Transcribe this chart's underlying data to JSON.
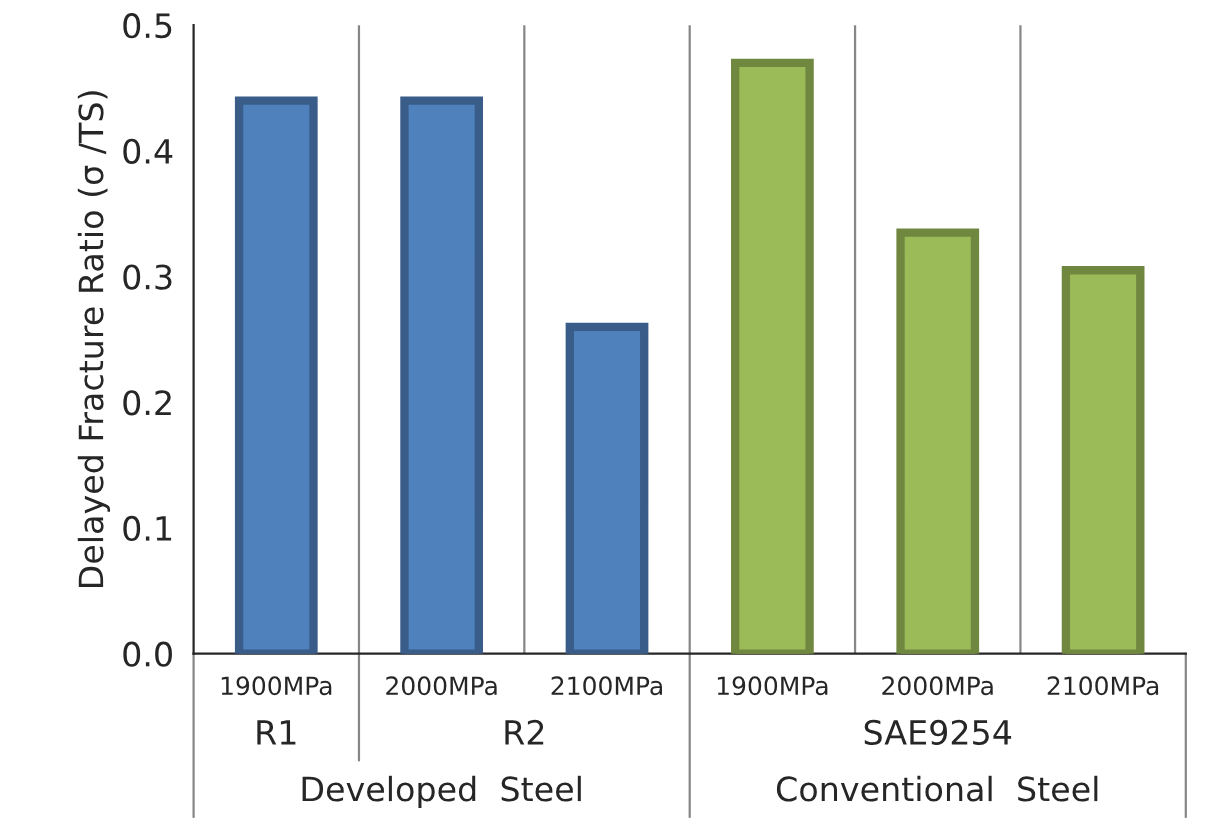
{
  "chart_data": {
    "type": "bar",
    "ylabel": "Delayed Fracture Ratio (σ /TS)",
    "categories": [
      "1900MPa",
      "2000MPa",
      "2100MPa",
      "1900MPa",
      "2000MPa",
      "2100MPa"
    ],
    "values": [
      0.44,
      0.44,
      0.26,
      0.47,
      0.335,
      0.305
    ],
    "colors": [
      "#4f81bd",
      "#4f81bd",
      "#4f81bd",
      "#9bbb59",
      "#9bbb59",
      "#9bbb59"
    ],
    "ylim": [
      0,
      0.5
    ],
    "yticks": [
      {
        "value": 0,
        "label": "0.0"
      },
      0.1,
      0.2,
      0.3,
      0.4,
      0.5
    ],
    "grid": "x",
    "annotations": [
      "R1",
      "R2",
      "SAE9254",
      "Developed  Steel",
      "Conventional  Steel"
    ]
  }
}
